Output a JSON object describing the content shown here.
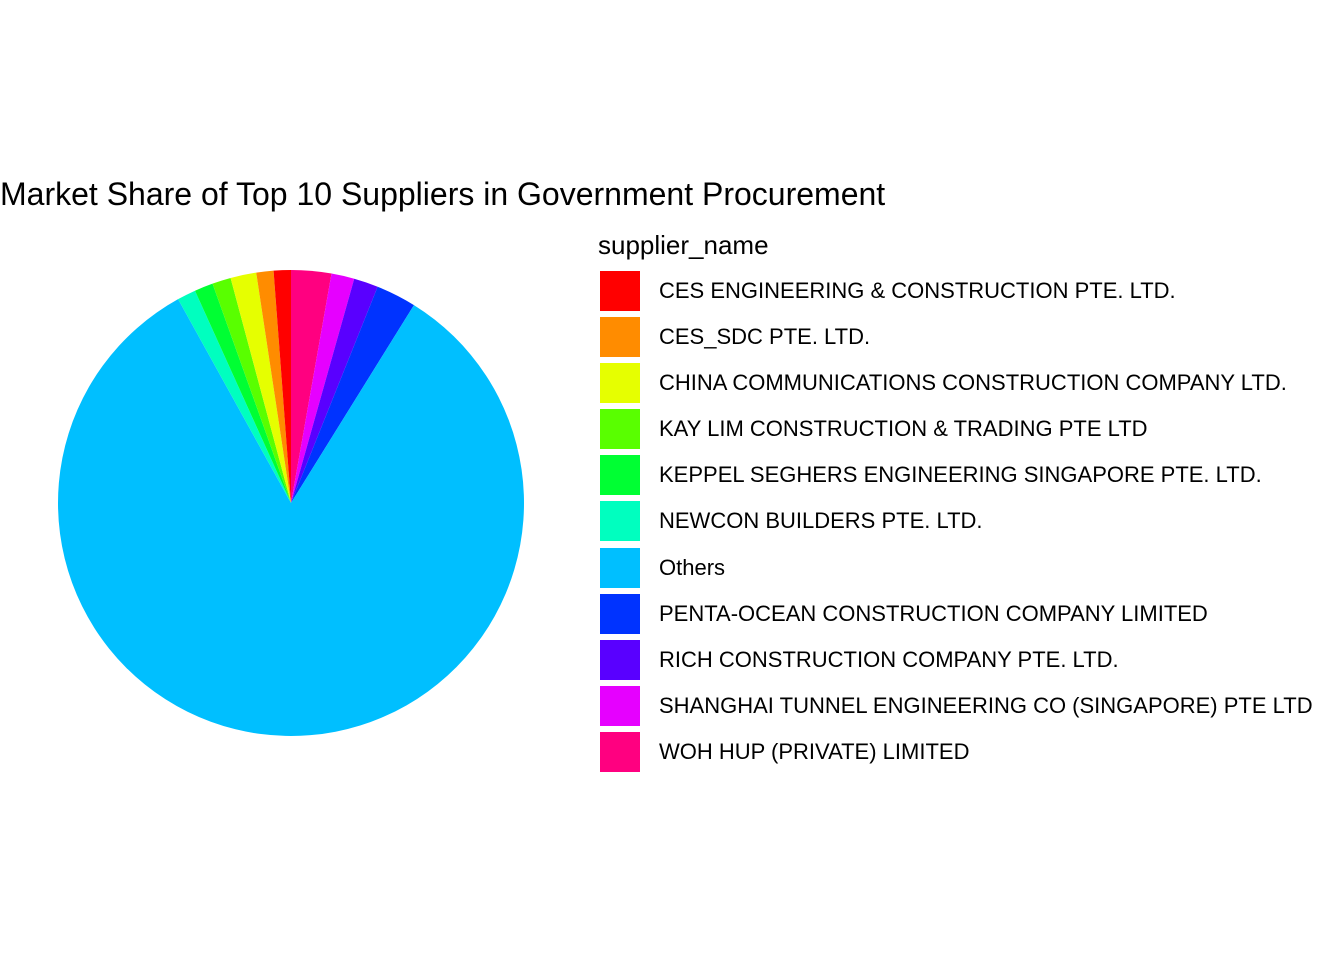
{
  "chart_data": {
    "type": "pie",
    "title": "Market Share of Top 10 Suppliers in Government Procurement",
    "legend_title": "supplier_name",
    "legend_position": "right",
    "slices": [
      {
        "name": "WOH HUP (PRIVATE) LIMITED",
        "value": 2.8,
        "color": "#FF0080"
      },
      {
        "name": "SHANGHAI TUNNEL ENGINEERING CO (SINGAPORE) PTE LTD",
        "value": 1.6,
        "color": "#E600FF"
      },
      {
        "name": "RICH CONSTRUCTION COMPANY PTE. LTD.",
        "value": 1.7,
        "color": "#5900FF"
      },
      {
        "name": "PENTA-OCEAN CONSTRUCTION COMPANY LIMITED",
        "value": 2.8,
        "color": "#0033FF"
      },
      {
        "name": "Others",
        "value": 83.6,
        "color": "#00BFFF"
      },
      {
        "name": "NEWCON BUILDERS PTE. LTD.",
        "value": 1.3,
        "color": "#00FFBF"
      },
      {
        "name": "KEPPEL SEGHERS ENGINEERING SINGAPORE PTE. LTD.",
        "value": 1.3,
        "color": "#00FF33"
      },
      {
        "name": "KAY LIM CONSTRUCTION & TRADING PTE LTD",
        "value": 1.3,
        "color": "#59FF00"
      },
      {
        "name": "CHINA COMMUNICATIONS CONSTRUCTION COMPANY LTD.",
        "value": 1.8,
        "color": "#E6FF00"
      },
      {
        "name": "CES_SDC PTE. LTD.",
        "value": 1.2,
        "color": "#FF8C00"
      },
      {
        "name": "CES ENGINEERING & CONSTRUCTION PTE. LTD.",
        "value": 1.2,
        "color": "#FF0000"
      }
    ],
    "legend_entries": [
      {
        "label": "CES ENGINEERING & CONSTRUCTION PTE. LTD.",
        "color": "#FF0000"
      },
      {
        "label": "CES_SDC PTE. LTD.",
        "color": "#FF8C00"
      },
      {
        "label": "CHINA COMMUNICATIONS CONSTRUCTION COMPANY LTD.",
        "color": "#E6FF00"
      },
      {
        "label": "KAY LIM CONSTRUCTION & TRADING PTE LTD",
        "color": "#59FF00"
      },
      {
        "label": "KEPPEL SEGHERS ENGINEERING SINGAPORE PTE. LTD.",
        "color": "#00FF33"
      },
      {
        "label": "NEWCON BUILDERS PTE. LTD.",
        "color": "#00FFBF"
      },
      {
        "label": "Others",
        "color": "#00BFFF"
      },
      {
        "label": "PENTA-OCEAN CONSTRUCTION COMPANY LIMITED",
        "color": "#0033FF"
      },
      {
        "label": "RICH CONSTRUCTION COMPANY PTE. LTD.",
        "color": "#5900FF"
      },
      {
        "label": "SHANGHAI TUNNEL ENGINEERING CO (SINGAPORE) PTE LTD",
        "color": "#E600FF"
      },
      {
        "label": "WOH HUP (PRIVATE) LIMITED",
        "color": "#FF0080"
      }
    ]
  }
}
